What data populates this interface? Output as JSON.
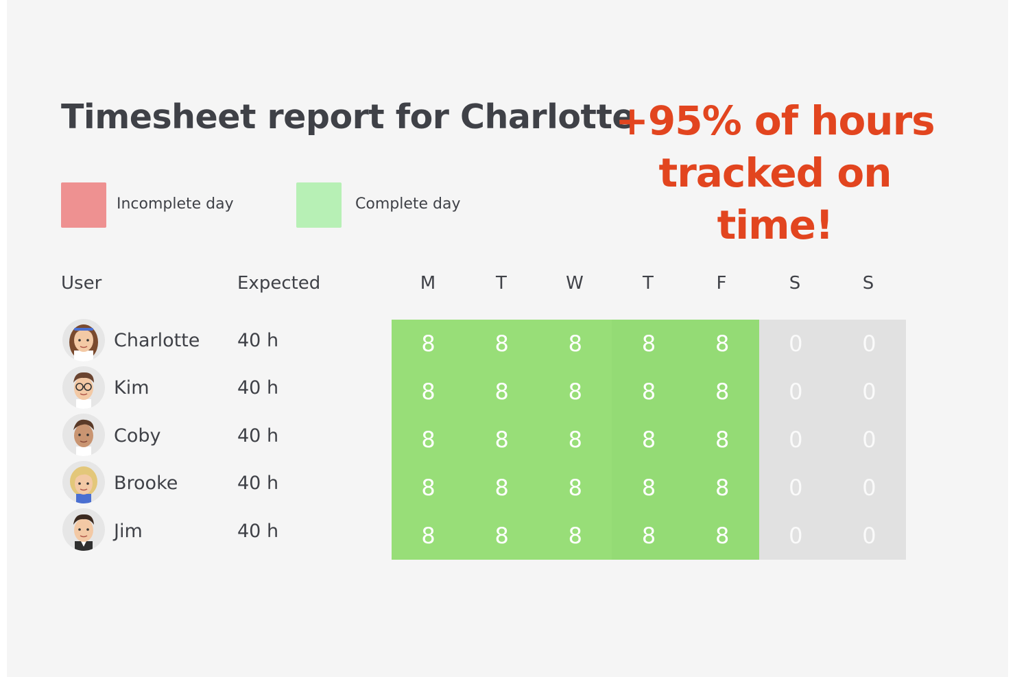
{
  "title": "Timesheet report for Charlotte",
  "promo": {
    "line1": "+95% of hours",
    "line2": "tracked on time!"
  },
  "legend": [
    {
      "label": "Incomplete day",
      "color": "#ee9191"
    },
    {
      "label": "Complete day",
      "color": "#b7f0b5"
    }
  ],
  "table": {
    "headers": {
      "user": "User",
      "expected": "Expected",
      "days": [
        "M",
        "T",
        "W",
        "T",
        "F",
        "S",
        "S"
      ]
    },
    "rows": [
      {
        "name": "Charlotte",
        "expected": "40 h",
        "hours": [
          "8",
          "8",
          "8",
          "8",
          "8",
          "0",
          "0"
        ]
      },
      {
        "name": "Kim",
        "expected": "40 h",
        "hours": [
          "8",
          "8",
          "8",
          "8",
          "8",
          "0",
          "0"
        ]
      },
      {
        "name": "Coby",
        "expected": "40 h",
        "hours": [
          "8",
          "8",
          "8",
          "8",
          "8",
          "0",
          "0"
        ]
      },
      {
        "name": "Brooke",
        "expected": "40 h",
        "hours": [
          "8",
          "8",
          "8",
          "8",
          "8",
          "0",
          "0"
        ]
      },
      {
        "name": "Jim",
        "expected": "40 h",
        "hours": [
          "8",
          "8",
          "8",
          "8",
          "8",
          "0",
          "0"
        ]
      }
    ]
  },
  "colors": {
    "complete": "#98de78",
    "weekend": "#e1e1e1",
    "accent": "#e2451f",
    "text": "#3f4147"
  }
}
